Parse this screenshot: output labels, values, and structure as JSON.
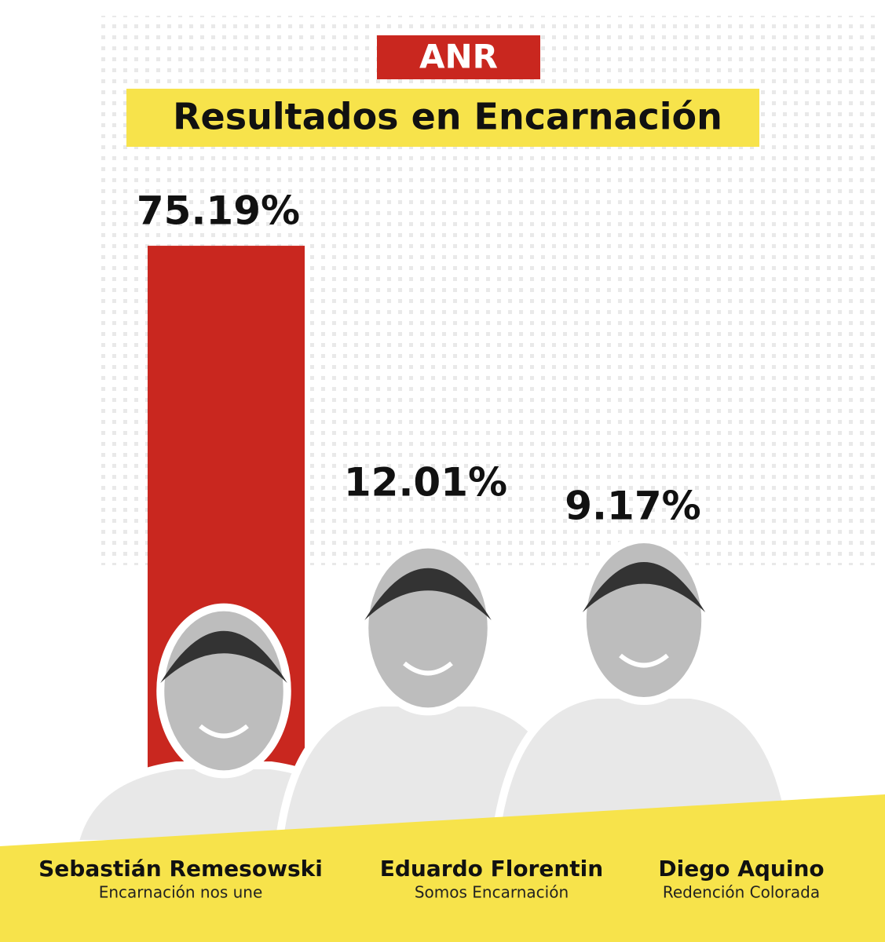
{
  "chart_data": {
    "type": "bar",
    "tag": "ANR",
    "title": "Resultados en Encarnación",
    "categories": [
      "Sebastián Remesowski",
      "Eduardo Florentin",
      "Diego Aquino"
    ],
    "parties": [
      "Encarnación nos une",
      "Somos Encarnación",
      "Redención Colorada"
    ],
    "values": [
      75.19,
      12.01,
      9.17
    ],
    "value_labels": [
      "75.19%",
      "12.01%",
      "9.17%"
    ],
    "color": "#c9271f"
  }
}
